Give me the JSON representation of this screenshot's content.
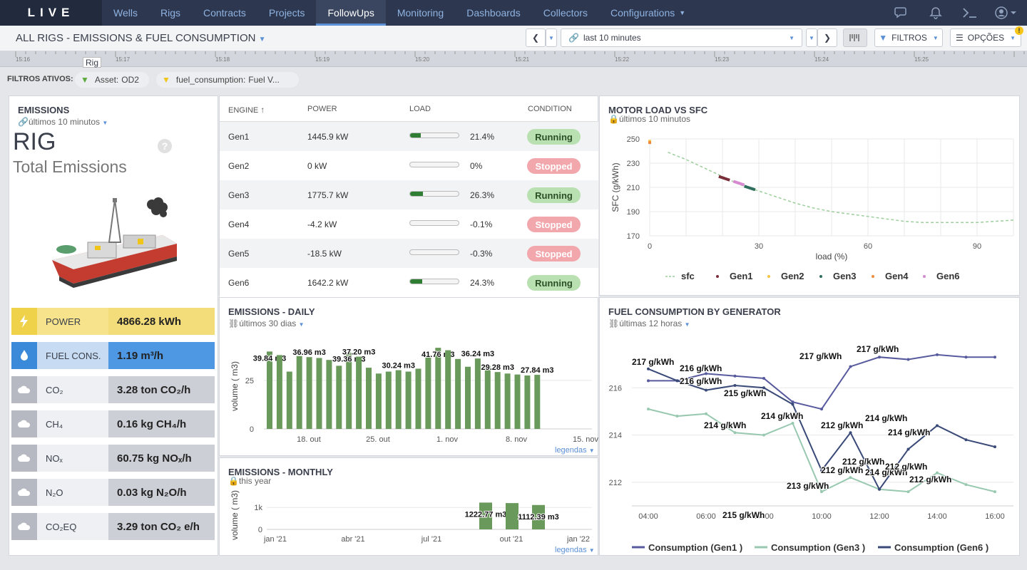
{
  "app": {
    "logo": "LIVE"
  },
  "nav": {
    "items": [
      "Wells",
      "Rigs",
      "Contracts",
      "Projects",
      "FollowUps",
      "Monitoring",
      "Dashboards",
      "Collectors",
      "Configurations"
    ],
    "active": "FollowUps"
  },
  "header": {
    "title": "ALL RIGS - EMISSIONS & FUEL CONSUMPTION",
    "time_range": "last 10 minutes",
    "filtros": "FILTROS",
    "opcoes": "OPÇÕES"
  },
  "timeline": {
    "labels": [
      "15:16",
      "15:17",
      "15:18",
      "15:19",
      "15:20",
      "15:21",
      "15:22",
      "15:23",
      "15:24",
      "15:25"
    ],
    "tooltip": "Rig"
  },
  "filters": {
    "label": "FILTROS ATIVOS:",
    "chips": [
      {
        "key": "Asset:",
        "value": "OD2"
      },
      {
        "key": "fuel_consumption:",
        "value": "Fuel V..."
      }
    ]
  },
  "emissions": {
    "title": "EMISSIONS",
    "subtitle": "últimos 10 minutos",
    "big": "RIG",
    "big_sub": "Total Emissions",
    "rows": [
      {
        "label": "POWER",
        "value": "4866.28 kWh",
        "icon": "bolt-icon"
      },
      {
        "label": "FUEL CONS.",
        "value": "1.19 m³/h",
        "icon": "drop-icon"
      },
      {
        "label": "CO₂",
        "value": "3.28 ton CO₂/h",
        "icon": "cloud-icon"
      },
      {
        "label": "CH₄",
        "value": "0.16 kg CH₄/h",
        "icon": "cloud-icon"
      },
      {
        "label": "NOₓ",
        "value": "60.75 kg NOₓ/h",
        "icon": "cloud-icon"
      },
      {
        "label": "N₂O",
        "value": "0.03 kg N₂O/h",
        "icon": "cloud-icon"
      },
      {
        "label": "CO₂EQ",
        "value": "3.29 ton CO₂ e/h",
        "icon": "cloud-icon"
      }
    ],
    "colors": {
      "power_dark": "#f0d24a",
      "power_light": "#f7e38c",
      "fuel_dark": "#3b8ad9",
      "fuel_light": "#6aa9ea",
      "gas_dark": "#b6b8c2",
      "gas_light": "#cdcfd7"
    }
  },
  "engines": {
    "headers": {
      "engine": "ENGINE",
      "power": "POWER",
      "load": "LOAD",
      "condition": "CONDITION"
    },
    "rows": [
      {
        "engine": "Gen1",
        "power": "1445.9 kW",
        "load": "21.4%",
        "load_frac": 0.214,
        "condition": "Running"
      },
      {
        "engine": "Gen2",
        "power": "0 kW",
        "load": "0%",
        "load_frac": 0,
        "condition": "Stopped"
      },
      {
        "engine": "Gen3",
        "power": "1775.7 kW",
        "load": "26.3%",
        "load_frac": 0.263,
        "condition": "Running"
      },
      {
        "engine": "Gen4",
        "power": "-4.2 kW",
        "load": "-0.1%",
        "load_frac": 0,
        "condition": "Stopped"
      },
      {
        "engine": "Gen5",
        "power": "-18.5 kW",
        "load": "-0.3%",
        "load_frac": 0,
        "condition": "Stopped"
      },
      {
        "engine": "Gen6",
        "power": "1642.2 kW",
        "load": "24.3%",
        "load_frac": 0.243,
        "condition": "Running"
      }
    ]
  },
  "motor": {
    "title": "MOTOR LOAD VS SFC",
    "subtitle": "últimos 10 minutos"
  },
  "daily": {
    "title": "EMISSIONS - DAILY",
    "subtitle": "últimos 30 dias",
    "legendas": "legendas"
  },
  "monthly": {
    "title": "EMISSIONS - MONTHLY",
    "subtitle": "this year",
    "legendas": "legendas"
  },
  "fuel": {
    "title": "FUEL CONSUMPTION BY GENERATOR",
    "subtitle": "últimas 12 horas"
  },
  "chart_data": [
    {
      "type": "line",
      "title": "MOTOR LOAD VS SFC",
      "xlabel": "load (%)",
      "ylabel": "SFC (g/kWh)",
      "xlim": [
        0,
        100
      ],
      "ylim": [
        170,
        250
      ],
      "xticks": [
        0,
        30,
        60,
        90
      ],
      "yticks": [
        170,
        190,
        210,
        230,
        250
      ],
      "series": [
        {
          "name": "sfc",
          "x": [
            5,
            10,
            15,
            20,
            25,
            30,
            35,
            40,
            45,
            50,
            55,
            60,
            65,
            70,
            75,
            80,
            85,
            90,
            95,
            100
          ],
          "y": [
            239,
            233,
            226,
            219,
            212,
            207,
            202,
            197,
            193,
            190,
            188,
            186,
            184,
            182,
            181,
            181,
            181,
            181,
            182,
            183
          ],
          "color": "#9ccf9c"
        },
        {
          "name": "Gen1",
          "x": [
            19,
            20,
            21,
            22
          ],
          "y": [
            219,
            218,
            217,
            216
          ],
          "color": "#7a2e3a"
        },
        {
          "name": "Gen2",
          "x": [
            0
          ],
          "y": [
            248
          ],
          "color": "#f5c542"
        },
        {
          "name": "Gen3",
          "x": [
            26,
            27,
            28,
            29
          ],
          "y": [
            211,
            210,
            209,
            208
          ],
          "color": "#2f6e5c"
        },
        {
          "name": "Gen4",
          "x": [
            0
          ],
          "y": [
            247
          ],
          "color": "#f08a3c"
        },
        {
          "name": "Gen6",
          "x": [
            23,
            24,
            25,
            26
          ],
          "y": [
            215,
            214,
            213,
            212
          ],
          "color": "#d78ad0"
        }
      ]
    },
    {
      "type": "bar",
      "title": "EMISSIONS - DAILY",
      "ylabel": "volume ( m3)",
      "ylim": [
        0,
        44
      ],
      "yticks": [
        0,
        25
      ],
      "x_tick_labels": [
        "18. out",
        "25. out",
        "1. nov",
        "8. nov",
        "15. nov"
      ],
      "values": [
        39.84,
        38,
        29.5,
        37.5,
        36.96,
        36.5,
        35.5,
        32.5,
        39.36,
        37.2,
        31.5,
        28.5,
        29.5,
        30.24,
        29.5,
        31,
        38,
        41.76,
        40.5,
        36,
        32,
        36.24,
        32.5,
        29.28,
        28.5,
        28,
        27.5,
        27.84
      ],
      "labels": {
        "0": "39.84 m3",
        "4": "36.96 m3",
        "8": "39.36 m3",
        "9": "37.20 m3",
        "13": "30.24 m3",
        "17": "41.76 m3",
        "21": "36.24 m3",
        "23": "29.28 m3",
        "27": "27.84 m3"
      },
      "color": "#6a9a5b"
    },
    {
      "type": "bar",
      "title": "EMISSIONS - MONTHLY",
      "ylabel": "volume ( m3)",
      "ylim": [
        0,
        1300
      ],
      "yticks": [
        0,
        1000
      ],
      "x_tick_labels": [
        "jan '21",
        "abr '21",
        "jul '21",
        "out '21",
        "jan '22"
      ],
      "categories": [
        "set '21",
        "out '21",
        "nov '21"
      ],
      "values": [
        1222.77,
        1200,
        1112.39
      ],
      "labels": [
        "1222.77 m3",
        "",
        "1112.39 m3"
      ],
      "color": "#6a9a5b"
    },
    {
      "type": "line",
      "title": "FUEL CONSUMPTION BY GENERATOR",
      "ylim": [
        211,
        218
      ],
      "yticks": [
        212,
        214,
        216
      ],
      "x_tick_labels": [
        "04:00",
        "06:00",
        "08:00",
        "10:00",
        "12:00",
        "14:00",
        "16:00"
      ],
      "x": [
        3,
        4,
        5,
        6,
        7,
        8,
        9,
        10,
        11,
        12,
        13,
        14,
        15
      ],
      "series": [
        {
          "name": "Consumption (Gen1 )",
          "y": [
            216.3,
            216.3,
            216.6,
            216.5,
            216.4,
            215.4,
            215.1,
            216.9,
            217.3,
            217.2,
            217.4,
            217.3,
            217.3
          ],
          "color": "#585a9e"
        },
        {
          "name": "Consumption (Gen3 )",
          "y": [
            215.1,
            214.8,
            214.9,
            214.1,
            214.0,
            214.5,
            211.6,
            212.2,
            211.7,
            211.6,
            212.4,
            211.9,
            211.6
          ],
          "color": "#98c9b0"
        },
        {
          "name": "Consumption (Gen6 )",
          "y": [
            216.8,
            216.3,
            215.9,
            216.1,
            216.0,
            215.3,
            212.5,
            214.1,
            211.7,
            213.4,
            214.4,
            213.8,
            213.5
          ],
          "color": "#3a4a78"
        }
      ],
      "labels": [
        "217 g/kWh",
        "216 g/kWh",
        "216 g/kWh",
        "215 g/kWh",
        "217 g/kWh",
        "217 g/kWh",
        "215 g/kWh",
        "214 g/kWh",
        "214 g/kWh",
        "212 g/kWh",
        "214 g/kWh",
        "212 g/kWh",
        "212 g/kWh",
        "213 g/kWh",
        "214 g/kWh",
        "214 g/kWh",
        "212 g/kWh",
        "212 g/kWh"
      ]
    }
  ]
}
